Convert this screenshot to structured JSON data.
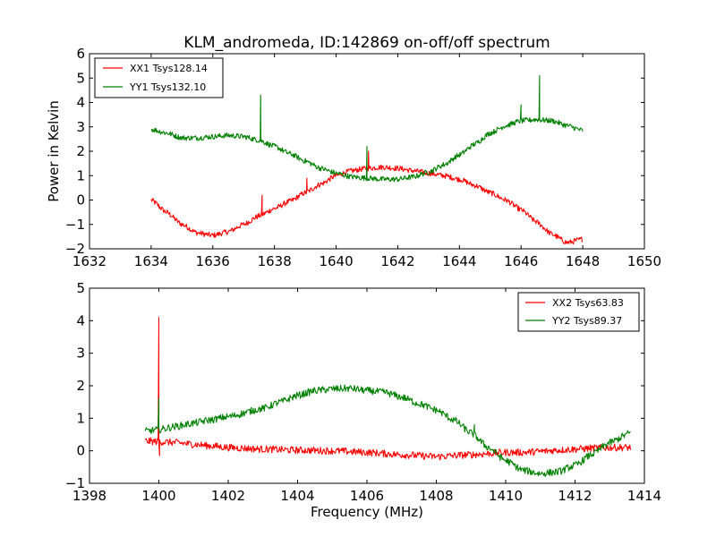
{
  "chart_data": [
    {
      "type": "line",
      "title": "KLM_andromeda, ID:142869 on-off/off spectrum",
      "xlabel": "",
      "ylabel": "Power in Kelvin",
      "xlim": [
        1632,
        1650
      ],
      "ylim": [
        -2,
        6
      ],
      "xticks": [
        "1632",
        "1634",
        "1636",
        "1638",
        "1640",
        "1642",
        "1644",
        "1646",
        "1648",
        "1650"
      ],
      "yticks": [
        "−2",
        "−1",
        "0",
        "1",
        "2",
        "3",
        "4",
        "5",
        "6"
      ],
      "xtick_values": [
        1632,
        1634,
        1636,
        1638,
        1640,
        1642,
        1644,
        1646,
        1648,
        1650
      ],
      "ytick_values": [
        -2,
        -1,
        0,
        1,
        2,
        3,
        4,
        5,
        6
      ],
      "legend_position": "top-left",
      "series": [
        {
          "name": "XX1 Tsys128.14",
          "color": "#ff0000",
          "x": [
            1634,
            1634.5,
            1635,
            1635.5,
            1636,
            1636.5,
            1637,
            1637.5,
            1638,
            1638.5,
            1639,
            1639.5,
            1640,
            1640.5,
            1641,
            1641.5,
            1642,
            1642.5,
            1643,
            1643.5,
            1644,
            1644.5,
            1645,
            1645.5,
            1646,
            1646.5,
            1647,
            1647.5,
            1648
          ],
          "y": [
            0.0,
            -0.5,
            -1.0,
            -1.35,
            -1.45,
            -1.3,
            -1.0,
            -0.65,
            -0.35,
            -0.05,
            0.3,
            0.65,
            1.0,
            1.2,
            1.3,
            1.35,
            1.3,
            1.2,
            1.1,
            1.0,
            0.85,
            0.6,
            0.3,
            0.0,
            -0.4,
            -0.9,
            -1.4,
            -1.75,
            -1.6
          ],
          "spikes": [
            {
              "x": 1637.6,
              "y": 0.2
            },
            {
              "x": 1639.05,
              "y": 0.9
            },
            {
              "x": 1641.05,
              "y": 2.0
            }
          ]
        },
        {
          "name": "YY1 Tsys132.10",
          "color": "#008000",
          "x": [
            1634,
            1634.5,
            1635,
            1635.5,
            1636,
            1636.5,
            1637,
            1637.5,
            1638,
            1638.5,
            1639,
            1639.5,
            1640,
            1640.5,
            1641,
            1641.5,
            1642,
            1642.5,
            1643,
            1643.5,
            1644,
            1644.5,
            1645,
            1645.5,
            1646,
            1646.5,
            1647,
            1647.5,
            1648
          ],
          "y": [
            2.9,
            2.75,
            2.55,
            2.55,
            2.6,
            2.65,
            2.6,
            2.45,
            2.2,
            1.9,
            1.6,
            1.3,
            1.1,
            0.95,
            0.9,
            0.85,
            0.85,
            0.95,
            1.15,
            1.45,
            1.85,
            2.3,
            2.75,
            3.05,
            3.25,
            3.3,
            3.25,
            3.05,
            2.85
          ],
          "spikes": [
            {
              "x": 1637.55,
              "y": 4.3
            },
            {
              "x": 1641.0,
              "y": 2.2
            },
            {
              "x": 1646.0,
              "y": 3.9
            },
            {
              "x": 1646.6,
              "y": 5.1
            }
          ]
        }
      ]
    },
    {
      "type": "line",
      "title": "",
      "xlabel": "Frequency (MHz)",
      "ylabel": "",
      "xlim": [
        1398,
        1414
      ],
      "ylim": [
        -1,
        5
      ],
      "xticks": [
        "1398",
        "1400",
        "1402",
        "1404",
        "1406",
        "1408",
        "1410",
        "1412",
        "1414"
      ],
      "yticks": [
        "−1",
        "0",
        "1",
        "2",
        "3",
        "4",
        "5"
      ],
      "xtick_values": [
        1398,
        1400,
        1402,
        1404,
        1406,
        1408,
        1410,
        1412,
        1414
      ],
      "ytick_values": [
        -1,
        0,
        1,
        2,
        3,
        4,
        5
      ],
      "legend_position": "top-right",
      "series": [
        {
          "name": "XX2 Tsys63.83",
          "color": "#ff0000",
          "x": [
            1399.6,
            1400,
            1400.5,
            1401,
            1401.5,
            1402,
            1403,
            1404,
            1405,
            1406,
            1407,
            1408,
            1409,
            1410,
            1410.5,
            1411,
            1411.5,
            1412,
            1412.5,
            1413,
            1413.6
          ],
          "y": [
            0.3,
            0.28,
            0.25,
            0.2,
            0.15,
            0.1,
            0.05,
            0.02,
            0.0,
            -0.05,
            -0.12,
            -0.18,
            -0.12,
            -0.05,
            -0.05,
            -0.02,
            0.02,
            0.05,
            0.08,
            0.1,
            0.1
          ],
          "spikes": [
            {
              "x": 1400.0,
              "y": 4.1
            },
            {
              "x": 1400.02,
              "y": -0.15
            }
          ]
        },
        {
          "name": "YY2 Tsys89.37",
          "color": "#008000",
          "x": [
            1399.6,
            1400,
            1400.5,
            1401,
            1401.5,
            1402,
            1403,
            1403.5,
            1404,
            1404.5,
            1405,
            1405.5,
            1406,
            1406.5,
            1407,
            1407.5,
            1408,
            1408.5,
            1409,
            1409.5,
            1410,
            1410.5,
            1411,
            1411.5,
            1412,
            1412.5,
            1413,
            1413.6
          ],
          "y": [
            0.6,
            0.65,
            0.75,
            0.85,
            0.95,
            1.05,
            1.3,
            1.5,
            1.7,
            1.85,
            1.9,
            1.92,
            1.85,
            1.8,
            1.65,
            1.45,
            1.25,
            0.95,
            0.55,
            0.1,
            -0.3,
            -0.6,
            -0.7,
            -0.65,
            -0.45,
            -0.1,
            0.25,
            0.55
          ],
          "spikes": [
            {
              "x": 1400.0,
              "y": 1.6
            },
            {
              "x": 1409.1,
              "y": 0.8
            }
          ]
        }
      ]
    }
  ]
}
